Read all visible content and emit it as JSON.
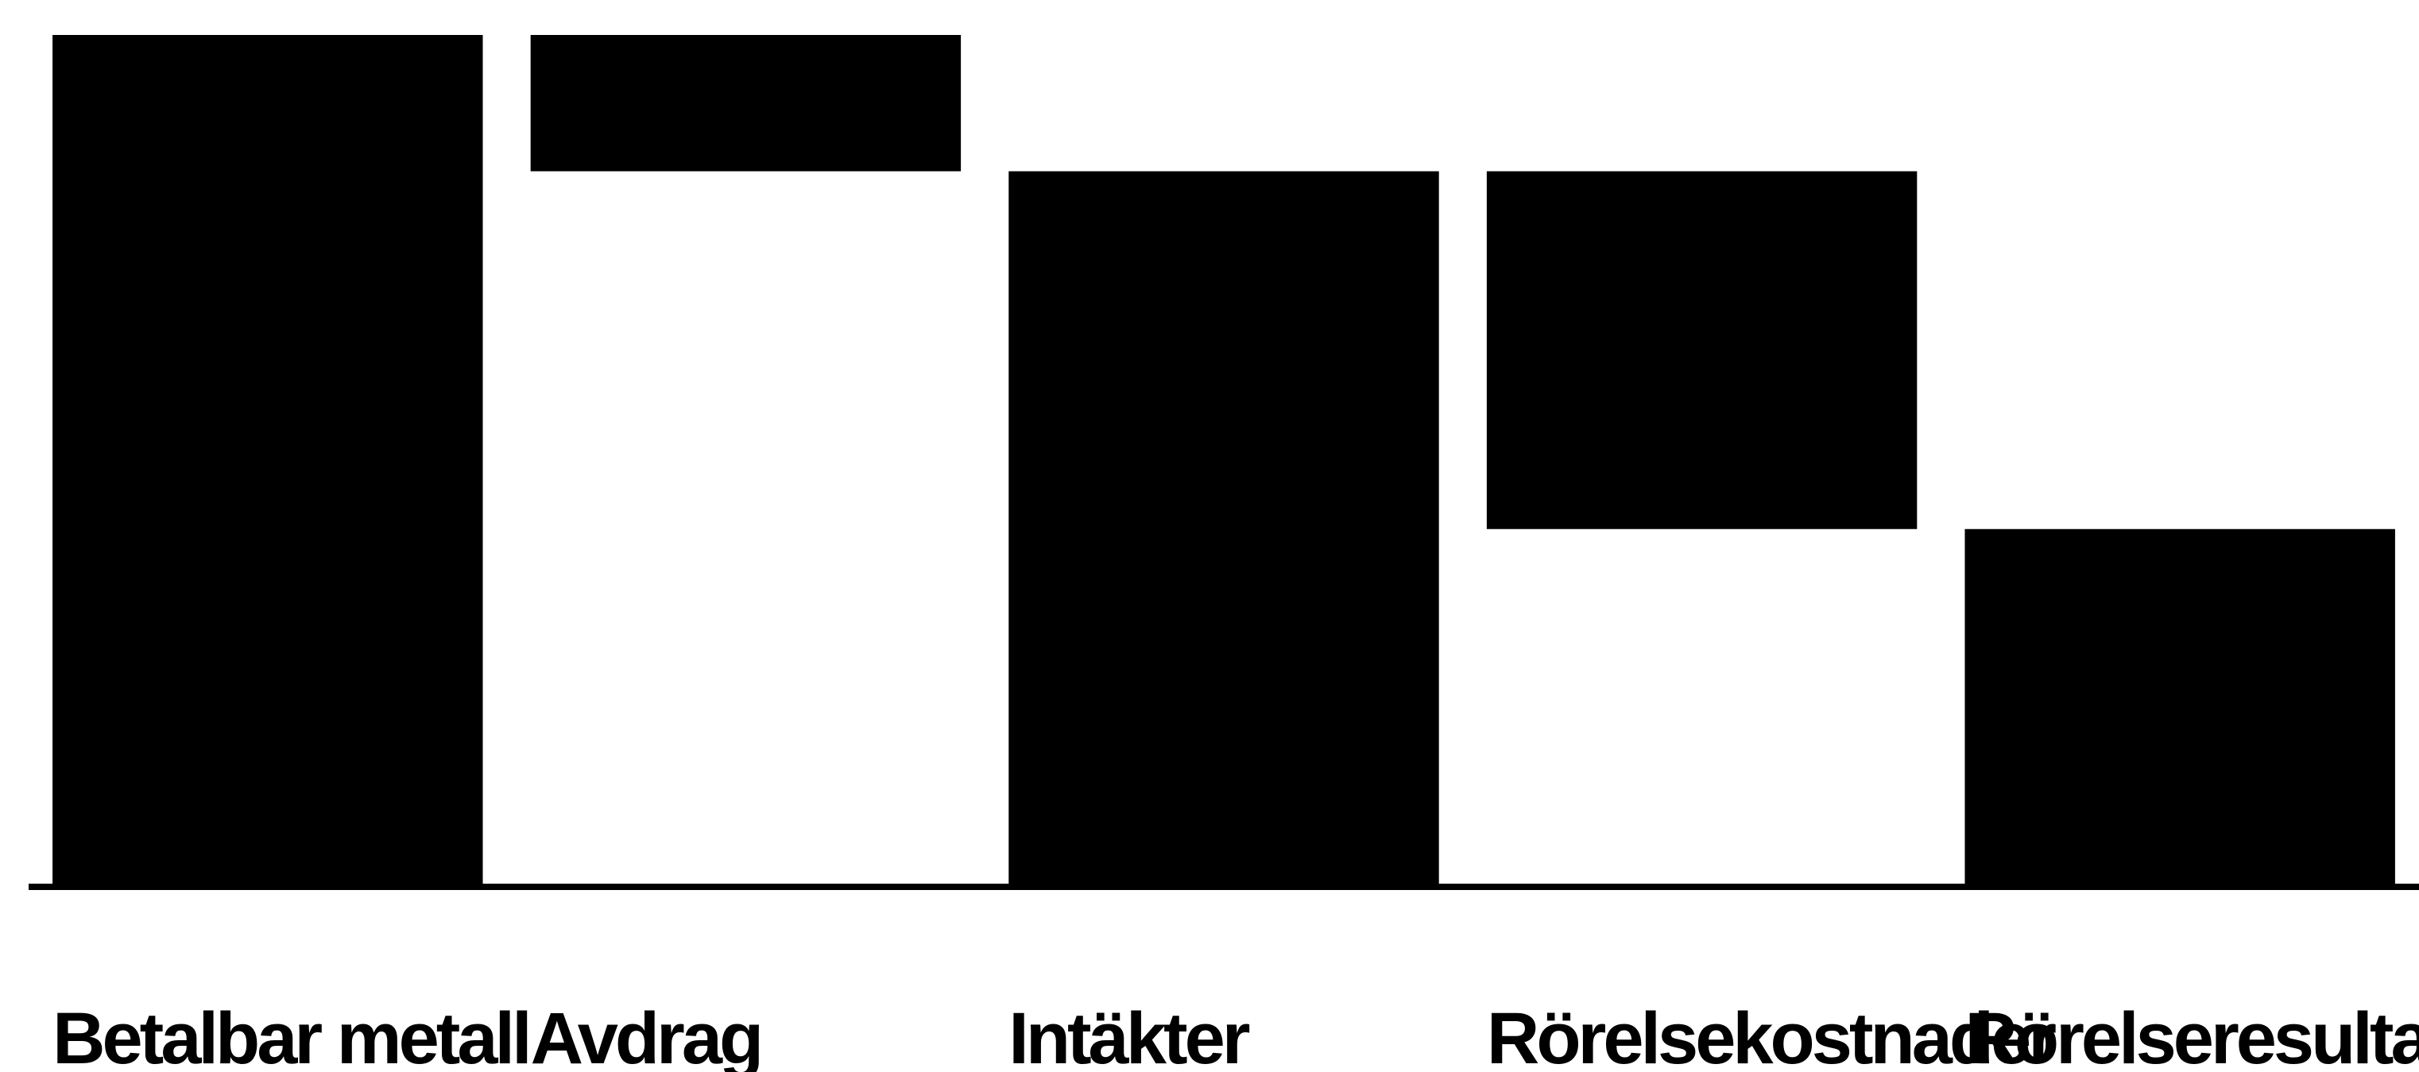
{
  "chart_data": {
    "type": "waterfall",
    "categories": [
      "Betalbar metall",
      "Avdrag",
      "Intäkter",
      "Rörelsekostnader",
      "Rörelseresultat"
    ],
    "steps": [
      {
        "label": "Betalbar metall",
        "kind": "total",
        "value": 100
      },
      {
        "label": "Avdrag",
        "kind": "delta",
        "value": -16
      },
      {
        "label": "Intäkter",
        "kind": "total",
        "value": 84
      },
      {
        "label": "Rörelsekostnader",
        "kind": "delta",
        "value": -42
      },
      {
        "label": "Rörelseresultat",
        "kind": "total",
        "value": 42
      }
    ],
    "ylim": [
      0,
      100
    ],
    "grid": false,
    "legend": "none",
    "colors": {
      "bar": "#000000",
      "baseline": "#000000",
      "background": "#ffffff"
    }
  }
}
